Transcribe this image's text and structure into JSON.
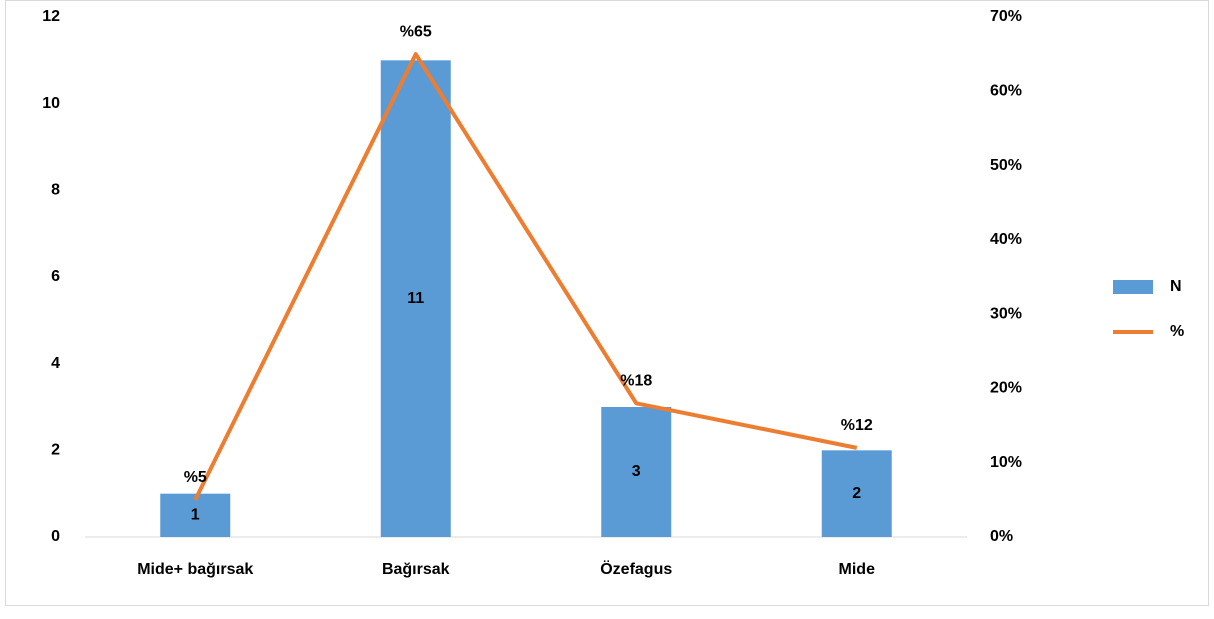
{
  "chart_data": {
    "type": "bar-line",
    "categories": [
      "Mide+ bağırsak",
      "Bağırsak",
      "Özefagus",
      "Mide"
    ],
    "series": [
      {
        "name": "N",
        "color": "#5b9bd5",
        "values": [
          1,
          11,
          3,
          2
        ]
      },
      {
        "name": "%",
        "color": "#ed7d31",
        "axis": "y2",
        "values": [
          5,
          65,
          18,
          12
        ],
        "value_labels": [
          "%5",
          "%65",
          "%18",
          "%12"
        ]
      }
    ],
    "ylim": [
      0,
      12
    ],
    "yticks": [
      0,
      2,
      4,
      6,
      8,
      10,
      12
    ],
    "y2lim": [
      0,
      70
    ],
    "y2ticks": [
      {
        "value": 0,
        "label": "0%"
      },
      {
        "value": 10,
        "label": "10%"
      },
      {
        "value": 20,
        "label": "20%"
      },
      {
        "value": 30,
        "label": "30%"
      },
      {
        "value": 40,
        "label": "40%"
      },
      {
        "value": 50,
        "label": "50%"
      },
      {
        "value": 60,
        "label": "60%"
      },
      {
        "value": 70,
        "label": "70%"
      }
    ],
    "grid": false,
    "legend": "right"
  }
}
